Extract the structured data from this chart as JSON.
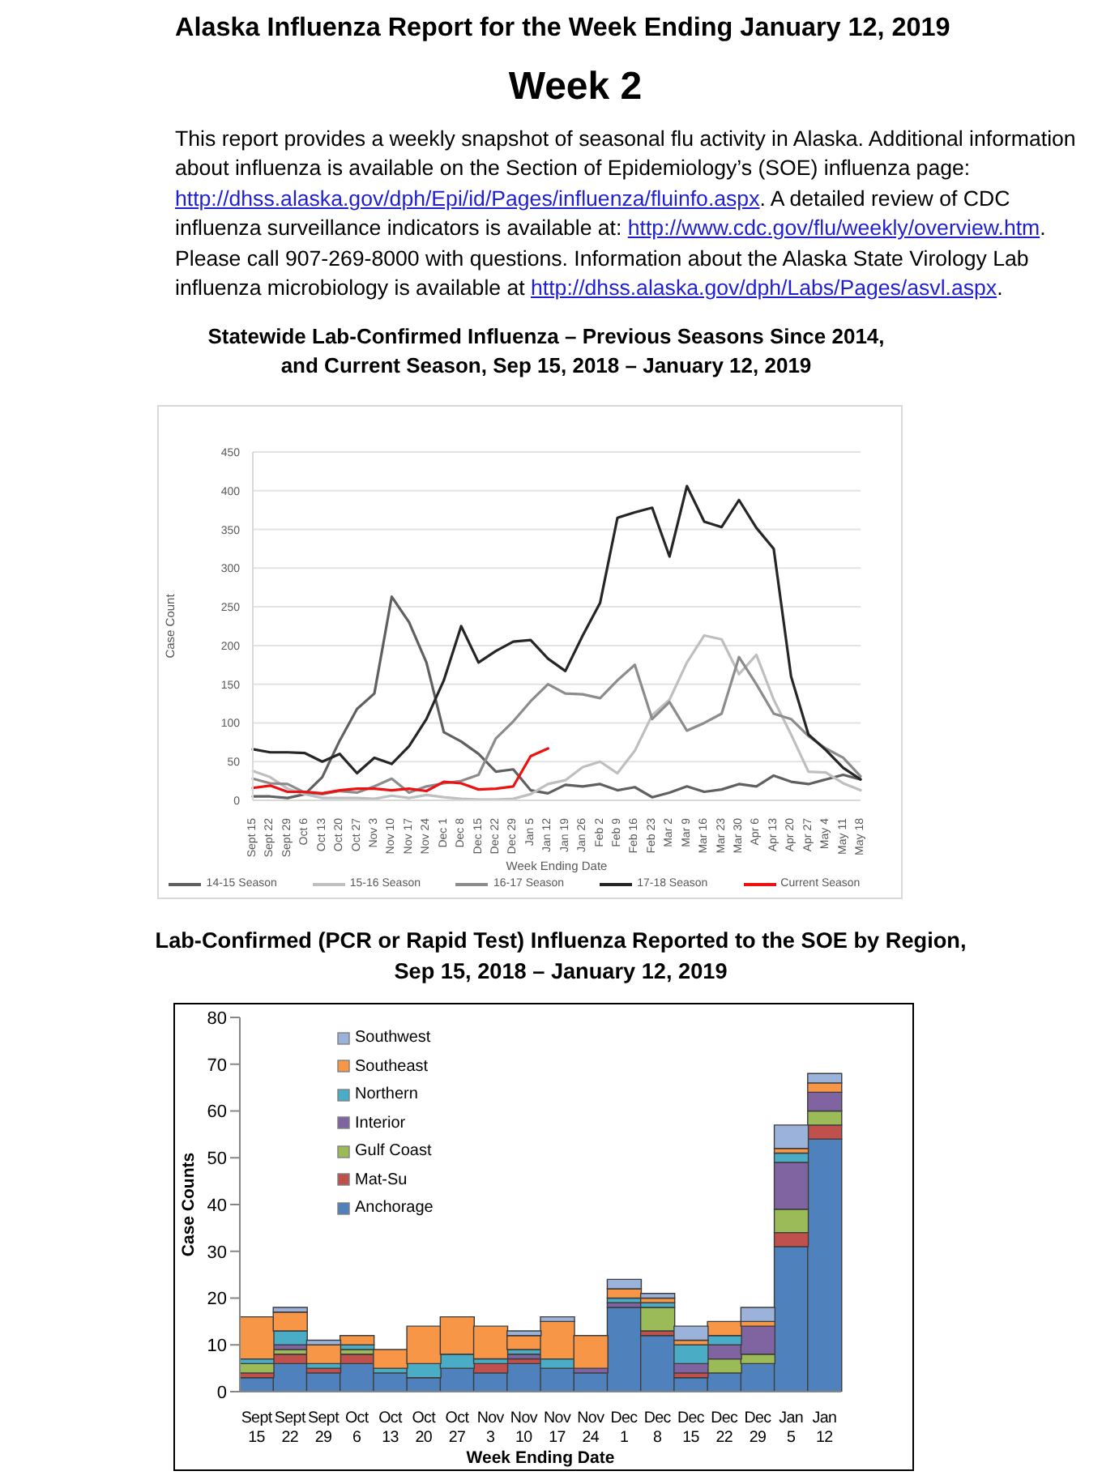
{
  "chart_data": [
    {
      "type": "line",
      "title": "Statewide Lab-Confirmed Influenza – Previous Seasons Since 2014, and Current Season, Sep 15, 2018 – January 12, 2019",
      "annotations": [
        "Alaska Influenza Report for the Week Ending January 12, 2019",
        "Week 2",
        "This report provides a weekly snapshot of seasonal flu activity in Alaska. Additional information about influenza is available on the Section of Epidemiology’s (SOE) influenza page: http://dhss.alaska.gov/dph/Epi/id/Pages/influenza/fluinfo.aspx. A detailed review of CDC influenza surveillance indicators is available at: http://www.cdc.gov/flu/weekly/overview.htm. Please call 907-269-8000 with questions. Information about the Alaska State Virology Lab influenza microbiology is available at http://dhss.alaska.gov/dph/Labs/Pages/asvl.aspx."
      ],
      "xlabel": "Week Ending Date",
      "ylabel": "Case Count",
      "categories": [
        "Sept 15",
        "Sept 22",
        "Sept 29",
        "Oct 6",
        "Oct 13",
        "Oct 20",
        "Oct 27",
        "Nov 3",
        "Nov 10",
        "Nov 17",
        "Nov 24",
        "Dec 1",
        "Dec 8",
        "Dec 15",
        "Dec 22",
        "Dec 29",
        "Jan 5",
        "Jan 12",
        "Jan 19",
        "Jan 26",
        "Feb 2",
        "Feb 9",
        "Feb 16",
        "Feb 23",
        "Mar 2",
        "Mar 9",
        "Mar 16",
        "Mar 23",
        "Mar 30",
        "Apr 6",
        "Apr 13",
        "Apr 20",
        "Apr 27",
        "May 4",
        "May 11",
        "May 18"
      ],
      "series": [
        {
          "name": "14-15 Season",
          "color": "#606060",
          "values": [
            5,
            5,
            3,
            8,
            30,
            77,
            118,
            138,
            263,
            230,
            178,
            88,
            76,
            60,
            37,
            40,
            13,
            9,
            20,
            18,
            21,
            13,
            17,
            4,
            10,
            18,
            11,
            14,
            21,
            18,
            32,
            24,
            21,
            27,
            33,
            27
          ]
        },
        {
          "name": "15-16 Season",
          "color": "#bfbfbf",
          "values": [
            38,
            30,
            15,
            8,
            3,
            3,
            3,
            2,
            6,
            3,
            7,
            4,
            2,
            1,
            1,
            2,
            8,
            21,
            26,
            43,
            50,
            35,
            64,
            110,
            130,
            178,
            213,
            208,
            163,
            188,
            130,
            85,
            37,
            36,
            22,
            13
          ]
        },
        {
          "name": "16-17 Season",
          "color": "#8c8c8c",
          "values": [
            28,
            22,
            21,
            10,
            8,
            12,
            10,
            18,
            28,
            10,
            18,
            22,
            25,
            33,
            80,
            102,
            128,
            150,
            138,
            137,
            132,
            155,
            175,
            105,
            127,
            90,
            100,
            112,
            185,
            150,
            112,
            105,
            83,
            67,
            55,
            31
          ]
        },
        {
          "name": "17-18 Season",
          "color": "#262626",
          "values": [
            66,
            62,
            62,
            61,
            50,
            60,
            35,
            55,
            47,
            70,
            105,
            155,
            225,
            178,
            193,
            205,
            207,
            183,
            167,
            213,
            255,
            365,
            372,
            378,
            315,
            406,
            360,
            353,
            388,
            352,
            325,
            160,
            85,
            65,
            42,
            27
          ]
        },
        {
          "name": "Current Season",
          "color": "#ee1111",
          "values": [
            16,
            19,
            11,
            11,
            9,
            13,
            15,
            15,
            13,
            15,
            12,
            24,
            22,
            14,
            15,
            18,
            57,
            67,
            null,
            null,
            null,
            null,
            null,
            null,
            null,
            null,
            null,
            null,
            null,
            null,
            null,
            null,
            null,
            null,
            null,
            null
          ]
        }
      ],
      "ylim": [
        0,
        450
      ],
      "yticks": [
        0,
        50,
        100,
        150,
        200,
        250,
        300,
        350,
        400,
        450
      ],
      "grid": "y",
      "legend": "bottom"
    },
    {
      "type": "bar",
      "stacked": true,
      "title": "Lab-Confirmed (PCR or Rapid Test) Influenza Reported to the SOE by Region, Sep 15, 2018 – January 12, 2019",
      "xlabel": "Week Ending Date",
      "ylabel": "Case Counts",
      "categories": [
        "Sept 15",
        "Sept 22",
        "Sept 29",
        "Oct 6",
        "Oct 13",
        "Oct 20",
        "Oct 27",
        "Nov 3",
        "Nov 10",
        "Nov 17",
        "Nov 24",
        "Dec 1",
        "Dec 8",
        "Dec 15",
        "Dec 22",
        "Dec 29",
        "Jan 5",
        "Jan 12"
      ],
      "series": [
        {
          "name": "Anchorage",
          "color": "#4f81bd",
          "values": [
            3,
            6,
            4,
            6,
            4,
            3,
            5,
            4,
            6,
            5,
            4,
            18,
            12,
            3,
            4,
            6,
            31,
            54
          ]
        },
        {
          "name": "Mat-Su",
          "color": "#c0504d",
          "values": [
            1,
            2,
            1,
            2,
            0,
            0,
            0,
            2,
            1,
            0,
            0,
            0,
            1,
            1,
            0,
            0,
            3,
            3
          ]
        },
        {
          "name": "Gulf Coast",
          "color": "#9bbb59",
          "values": [
            2,
            1,
            0,
            1,
            0,
            0,
            0,
            0,
            0,
            0,
            0,
            0,
            5,
            0,
            3,
            2,
            5,
            3
          ]
        },
        {
          "name": "Interior",
          "color": "#8064a2",
          "values": [
            0,
            1,
            0,
            0,
            0,
            0,
            0,
            0,
            1,
            0,
            1,
            1,
            0,
            2,
            3,
            6,
            10,
            4
          ]
        },
        {
          "name": "Northern",
          "color": "#4bacc6",
          "values": [
            1,
            3,
            1,
            1,
            1,
            3,
            3,
            1,
            1,
            2,
            0,
            1,
            1,
            4,
            2,
            0,
            2,
            0
          ]
        },
        {
          "name": "Southeast",
          "color": "#f79646",
          "values": [
            9,
            4,
            4,
            2,
            4,
            8,
            8,
            7,
            3,
            8,
            7,
            2,
            1,
            1,
            3,
            1,
            1,
            2
          ]
        },
        {
          "name": "Southwest",
          "color": "#9bb3db",
          "values": [
            0,
            1,
            1,
            0,
            0,
            0,
            0,
            0,
            1,
            1,
            0,
            2,
            1,
            3,
            0,
            3,
            5,
            2
          ]
        }
      ],
      "ylim": [
        0,
        80
      ],
      "yticks": [
        0,
        10,
        20,
        30,
        40,
        50,
        60,
        70,
        80
      ],
      "legend": "top left"
    }
  ]
}
